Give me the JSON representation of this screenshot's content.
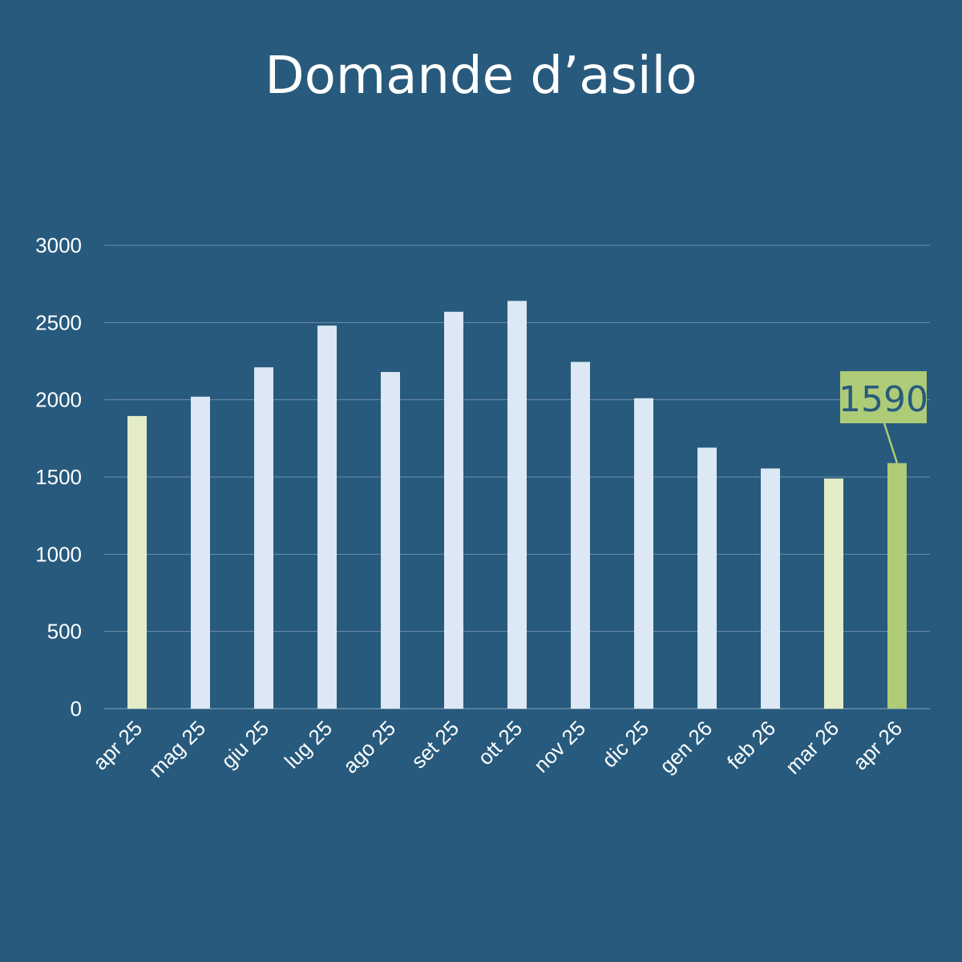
{
  "chart_data": {
    "type": "bar",
    "title": "Domande d’asilo",
    "categories": [
      "apr 25",
      "mag 25",
      "giu 25",
      "lug 25",
      "ago 25",
      "set 25",
      "ott 25",
      "nov 25",
      "dic 25",
      "gen 26",
      "feb 26",
      "mar 26",
      "apr 26"
    ],
    "values": [
      1895,
      2020,
      2210,
      2480,
      2180,
      2570,
      2640,
      2245,
      2010,
      1690,
      1555,
      1490,
      1590
    ],
    "yticks": [
      0,
      500,
      1000,
      1500,
      2000,
      2500,
      3000
    ],
    "ylim": [
      0,
      3000
    ],
    "grid": true,
    "annotation": {
      "category": "apr 26",
      "text": "1590"
    },
    "colors": {
      "background": "#275a7d",
      "bar_default": "#dce8f4",
      "bar_compare": "#e3ecc6",
      "bar_highlight": "#aecb78",
      "gridline": "#6f8fa8",
      "text": "#ffffff",
      "annotation_text": "#275a7d"
    },
    "highlight_categories": [
      "apr 26"
    ],
    "compare_categories": [
      "apr 25",
      "mar 26"
    ]
  }
}
